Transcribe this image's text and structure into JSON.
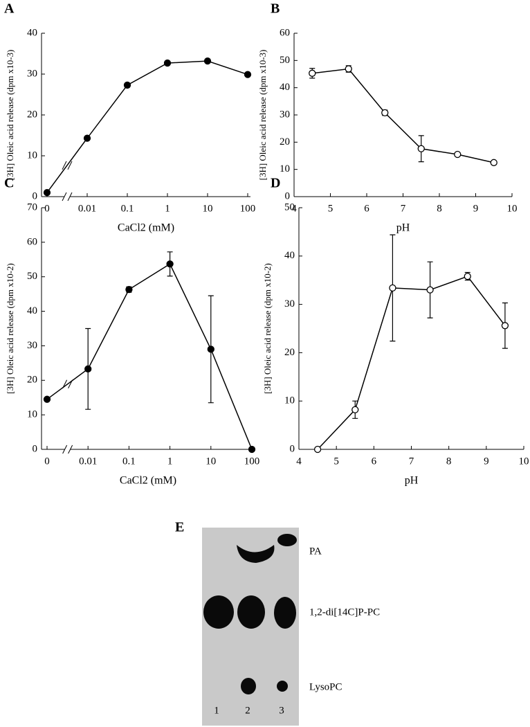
{
  "chart_data": [
    {
      "type": "line",
      "panel": "A",
      "xlabel": "CaCl2 (mM)",
      "ylabel": "[3H] Oleic acid release (dpm x10-3)",
      "categories": [
        "0",
        "0.01",
        "0.1",
        "1",
        "10",
        "100"
      ],
      "axis_break": true,
      "series": [
        {
          "color": "#000000",
          "marker_fill": "#000000",
          "values": [
            1,
            14.3,
            27.3,
            32.7,
            33.2,
            29.9
          ]
        }
      ],
      "ylim": [
        0,
        40
      ],
      "yticks": [
        0,
        10,
        20,
        30,
        40
      ]
    },
    {
      "type": "line",
      "panel": "B",
      "xlabel": "pH",
      "ylabel": "[3H] Oleic acid release (dpm x10-3)",
      "x": [
        4.5,
        5.5,
        6.5,
        7.5,
        8.5,
        9.5
      ],
      "series": [
        {
          "color": "#000000",
          "marker_fill": "#ffffff",
          "values": [
            45.3,
            46.9,
            30.8,
            17.6,
            15.5,
            12.5
          ],
          "errors": [
            1.8,
            1.2,
            1,
            4.8,
            0.6,
            0.5
          ]
        }
      ],
      "xlim": [
        4,
        10
      ],
      "xticks": [
        4,
        5,
        6,
        7,
        8,
        9,
        10
      ],
      "ylim": [
        0,
        60
      ],
      "yticks": [
        0,
        10,
        20,
        30,
        40,
        50,
        60
      ]
    },
    {
      "type": "line",
      "panel": "C",
      "xlabel": "CaCl2 (mM)",
      "ylabel": "[3H] Oleic acid release (dpm x10-2)",
      "categories": [
        "0",
        "0.01",
        "0.1",
        "1",
        "10",
        "100"
      ],
      "axis_break": true,
      "series": [
        {
          "color": "#000000",
          "marker_fill": "#000000",
          "values": [
            14.5,
            23.3,
            46.3,
            53.7,
            29,
            0
          ],
          "errors": [
            0.5,
            11.7,
            0.8,
            3.5,
            15.5,
            0
          ]
        }
      ],
      "ylim": [
        0,
        70
      ],
      "yticks": [
        0,
        10,
        20,
        30,
        40,
        50,
        60,
        70
      ]
    },
    {
      "type": "line",
      "panel": "D",
      "xlabel": "pH",
      "ylabel": "[3H] Oleic acid release (dpm x10-2)",
      "x": [
        4.5,
        5.5,
        6.5,
        7.5,
        8.5,
        9.5
      ],
      "series": [
        {
          "color": "#000000",
          "marker_fill": "#ffffff",
          "values": [
            0,
            8.2,
            33.4,
            33,
            35.8,
            25.6
          ],
          "errors": [
            0,
            1.8,
            11,
            5.8,
            0.8,
            4.7
          ]
        }
      ],
      "xlim": [
        4,
        10
      ],
      "xticks": [
        4,
        5,
        6,
        7,
        8,
        9,
        10
      ],
      "ylim": [
        0,
        50
      ],
      "yticks": [
        0,
        10,
        20,
        30,
        40,
        50
      ]
    }
  ],
  "gel": {
    "panel": "E",
    "bands": [
      "PA",
      "1,2-di[14C]P-PC",
      "LysoPC"
    ],
    "lanes": [
      "1",
      "2",
      "3"
    ]
  }
}
